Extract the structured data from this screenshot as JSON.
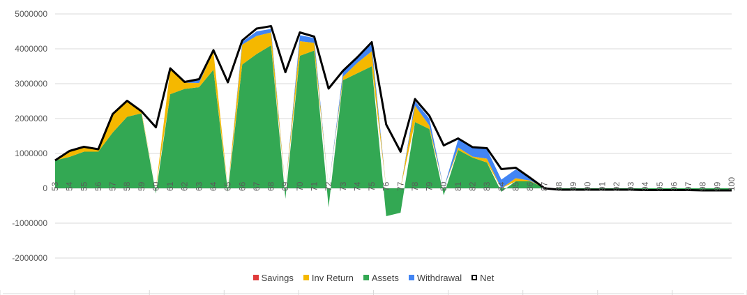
{
  "chart_data": {
    "type": "area",
    "x": [
      53,
      54,
      55,
      56,
      57,
      58,
      59,
      60,
      61,
      62,
      63,
      64,
      65,
      66,
      67,
      68,
      69,
      70,
      71,
      72,
      73,
      74,
      75,
      76,
      77,
      78,
      79,
      80,
      81,
      82,
      83,
      84,
      85,
      86,
      87,
      88,
      89,
      90,
      91,
      92,
      93,
      94,
      95,
      96,
      97,
      98,
      99,
      100
    ],
    "ylim": [
      -2000000,
      5000000
    ],
    "yticks": [
      "5000000",
      "4000000",
      "3000000",
      "2000000",
      "1000000",
      "0",
      "-1000000",
      "-2000000"
    ],
    "ytick_values": [
      5000000,
      4000000,
      3000000,
      2000000,
      1000000,
      0,
      -1000000,
      -2000000
    ],
    "grid": true,
    "legend_position": "bottom",
    "series": [
      {
        "name": "Savings",
        "color": "#e03b3b",
        "values": [
          0,
          0,
          0,
          0,
          0,
          0,
          0,
          0,
          0,
          0,
          0,
          0,
          0,
          0,
          0,
          0,
          0,
          0,
          0,
          0,
          0,
          0,
          0,
          0,
          0,
          0,
          0,
          0,
          0,
          0,
          0,
          0,
          0,
          0,
          0,
          0,
          0,
          0,
          0,
          0,
          0,
          0,
          0,
          0,
          0,
          0,
          0,
          0
        ]
      },
      {
        "name": "Inv Return",
        "color": "#f5b800",
        "values": [
          0,
          150000,
          120000,
          50000,
          520000,
          450000,
          50000,
          0,
          730000,
          180000,
          120000,
          520000,
          0,
          570000,
          520000,
          370000,
          0,
          420000,
          220000,
          0,
          100000,
          300000,
          430000,
          0,
          0,
          470000,
          100000,
          0,
          70000,
          30000,
          110000,
          0,
          90000,
          20000,
          0,
          0,
          0,
          0,
          0,
          0,
          0,
          0,
          0,
          0,
          0,
          0,
          0,
          0
        ]
      },
      {
        "name": "Assets",
        "color": "#33a853",
        "values": [
          800000,
          900000,
          1050000,
          1050000,
          1600000,
          2050000,
          2150000,
          -150000,
          2700000,
          2850000,
          2900000,
          3400000,
          -100000,
          3550000,
          3850000,
          4100000,
          -300000,
          3800000,
          3950000,
          -550000,
          3100000,
          3300000,
          3500000,
          -800000,
          -700000,
          1900000,
          1700000,
          -200000,
          1100000,
          880000,
          740000,
          -100000,
          200000,
          200000,
          10000,
          -40000,
          -40000,
          -40000,
          -40000,
          -40000,
          -40000,
          -50000,
          -50000,
          -50000,
          -50000,
          -60000,
          -60000,
          -60000
        ]
      },
      {
        "name": "Withdrawal",
        "color": "#4285f4",
        "values": [
          0,
          0,
          0,
          0,
          0,
          0,
          0,
          0,
          0,
          0,
          100000,
          0,
          0,
          80000,
          130000,
          100000,
          0,
          170000,
          140000,
          0,
          150000,
          200000,
          200000,
          0,
          0,
          130000,
          200000,
          0,
          230000,
          250000,
          270000,
          250000,
          250000,
          80000,
          0,
          0,
          0,
          0,
          0,
          0,
          0,
          0,
          0,
          0,
          0,
          0,
          0,
          0
        ]
      },
      {
        "name": "Net",
        "color": "#000000",
        "values": [
          800000,
          1070000,
          1190000,
          1120000,
          2130000,
          2510000,
          2210000,
          1750000,
          3440000,
          3050000,
          3130000,
          3960000,
          3040000,
          4240000,
          4580000,
          4650000,
          3330000,
          4470000,
          4350000,
          2860000,
          3370000,
          3760000,
          4190000,
          1830000,
          1050000,
          2560000,
          2080000,
          1230000,
          1430000,
          1180000,
          1150000,
          550000,
          590000,
          300000,
          0,
          -40000,
          -40000,
          -40000,
          -40000,
          -40000,
          -40000,
          -50000,
          -50000,
          -50000,
          -50000,
          -60000,
          -60000,
          -60000
        ]
      }
    ]
  }
}
